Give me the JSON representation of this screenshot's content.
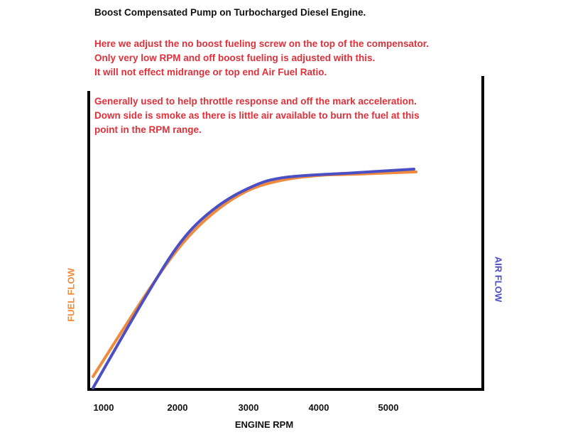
{
  "chart_data": {
    "type": "line",
    "title": "Boost Compensated Pump on Turbocharged Diesel Engine.",
    "notes": [
      "Here we adjust the no boost fueling screw on the top of the compensator.",
      "Only very low RPM and off boost fueling is adjusted with this.",
      "It will not effect midrange or top end Air Fuel Ratio.",
      "Generally used to help throttle response and off the mark acceleration.",
      "Down side is smoke as there is little air available to burn the fuel at this",
      "point in the RPM range."
    ],
    "xlabel": "ENGINE RPM",
    "ylabel_left": "FUEL FLOW",
    "ylabel_right": "AIR FLOW",
    "x_ticks": [
      "1000",
      "2000",
      "3000",
      "4000",
      "5000"
    ],
    "xlim": [
      830,
      6300
    ],
    "ylim": [
      0,
      100
    ],
    "y_scale_note_free": true,
    "grid": false,
    "series": [
      {
        "name": "FUEL FLOW",
        "color": "#f08a3c",
        "x": [
          830,
          1570,
          2070,
          2520,
          3020,
          3520,
          4020,
          4520,
          5380
        ],
        "y": [
          4.3,
          31.7,
          48.3,
          59,
          66.7,
          70.2,
          71.7,
          72.1,
          72.9
        ]
      },
      {
        "name": "AIR FLOW",
        "color": "#4b4fc4",
        "x": [
          830,
          1570,
          2070,
          2520,
          3020,
          3520,
          4520,
          5350
        ],
        "y": [
          0.5,
          31,
          49.5,
          60.2,
          67.4,
          71,
          72.6,
          73.8
        ]
      }
    ],
    "text_color": "#e0303a"
  }
}
